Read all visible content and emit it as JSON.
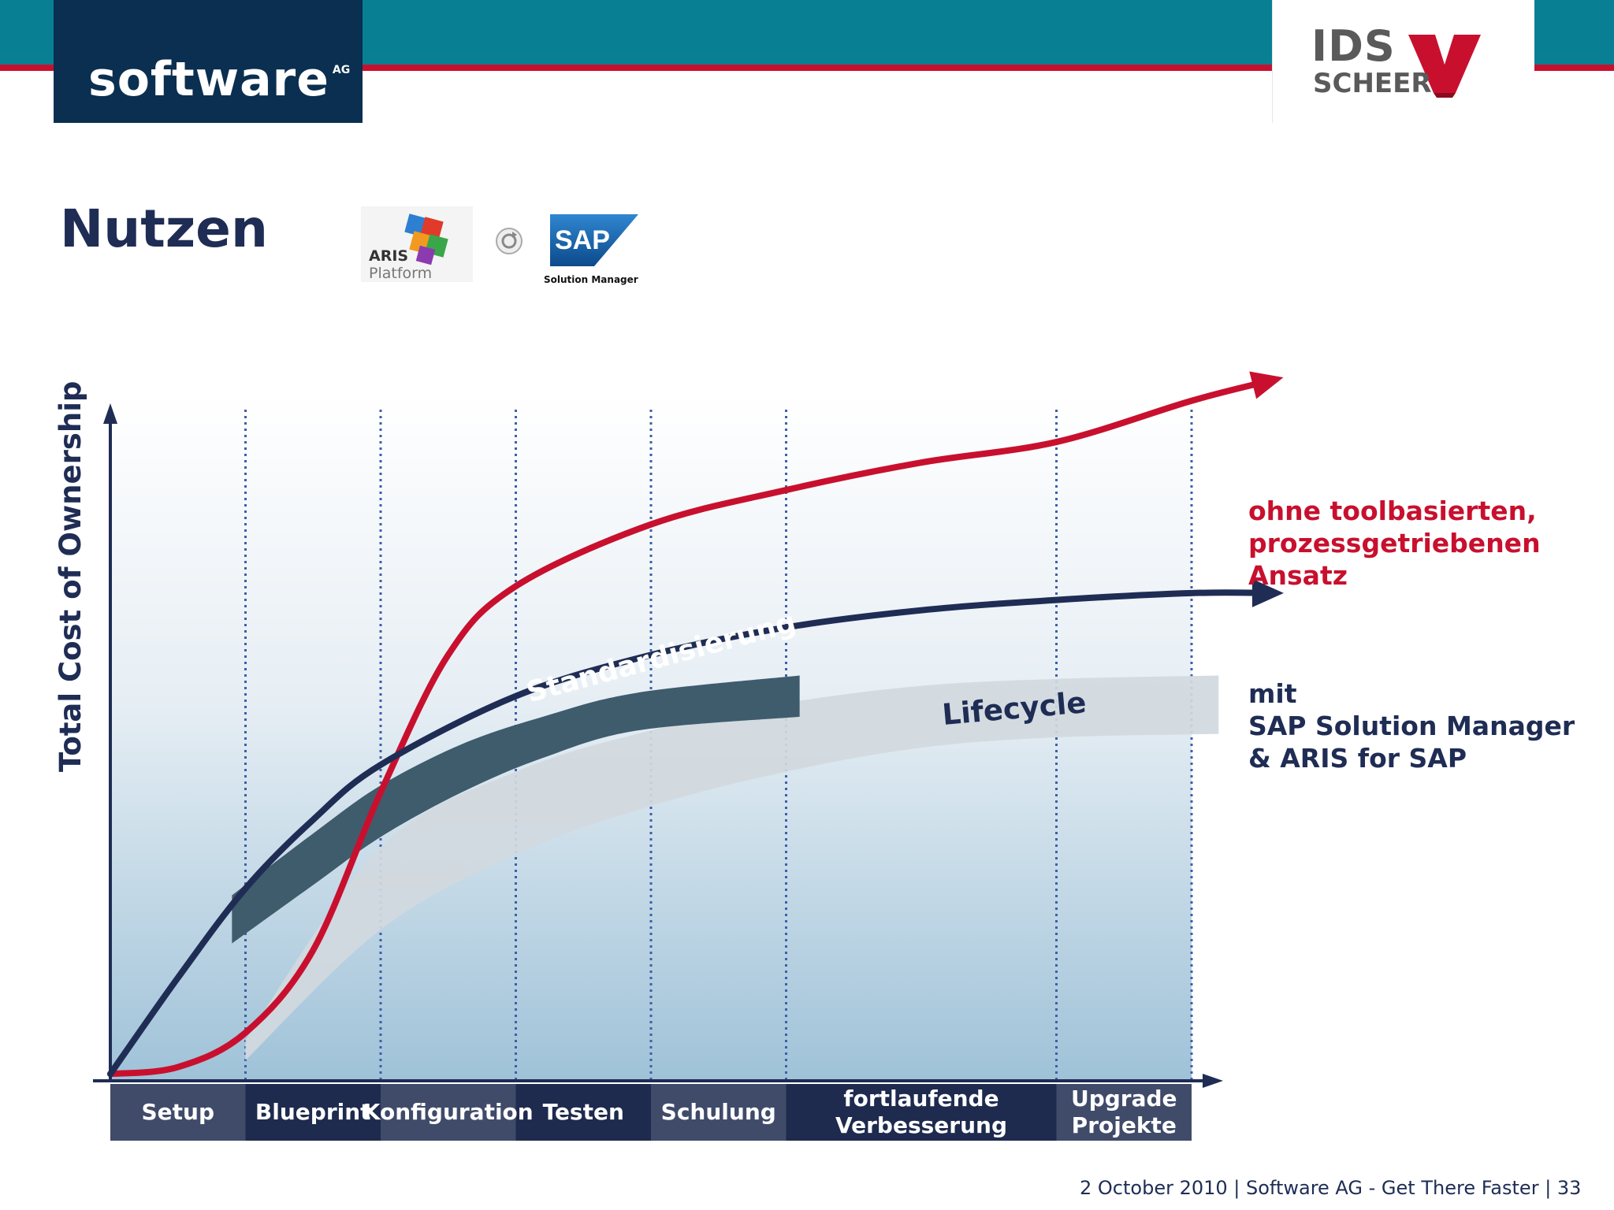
{
  "header": {
    "left_logo": "software",
    "left_logo_sup": "AG",
    "right_logo_top": "IDS",
    "right_logo_bottom": "SCHEER"
  },
  "title": "Nutzen",
  "logos": {
    "aris": "ARIS",
    "aris_sub": "Platform",
    "sap": "SAP",
    "sap_sub": "Solution Manager"
  },
  "chart_data": {
    "type": "line",
    "ylabel": "Total Cost of Ownership",
    "xlabel": "",
    "categories": [
      "Setup",
      "Blueprint",
      "Konfiguration",
      "Testen",
      "Schulung",
      "fortlaufende Verbesserung",
      "Upgrade Projekte"
    ],
    "x_range": [
      0,
      8
    ],
    "ylim": [
      0,
      100
    ],
    "phase_bounds": [
      0,
      1,
      2,
      3,
      4,
      5,
      7,
      8
    ],
    "gridlines": "vertical dotted",
    "series": [
      {
        "name": "ohne toolbasierten, prozessgetriebenen Ansatz",
        "color": "#c8102e",
        "x": [
          0,
          0.5,
          1,
          1.5,
          2,
          2.5,
          3,
          4,
          5,
          6,
          7,
          8,
          8.6
        ],
        "values": [
          1,
          2,
          7,
          19,
          42,
          62,
          72,
          81,
          86,
          90,
          93,
          99,
          102
        ]
      },
      {
        "name": "mit SAP Solution Manager & ARIS for SAP",
        "color": "#1f2d55",
        "x": [
          0,
          0.5,
          1,
          1.5,
          2,
          3,
          4,
          5,
          6,
          7,
          8,
          8.6
        ],
        "values": [
          1,
          15,
          28,
          38,
          46,
          56,
          62,
          66,
          68.5,
          70,
          71,
          71
        ]
      }
    ],
    "bands": [
      {
        "label": "Standardisierung",
        "color": "#3f5c6d"
      },
      {
        "label": "Lifecycle",
        "color": "#d1d9de"
      }
    ],
    "legend": {
      "red": "ohne toolbasierten,\nprozessgetriebenen\nAnsatz",
      "blue": "mit\nSAP Solution Manager\n& ARIS for SAP"
    }
  },
  "footer": "2 October 2010  |  Software AG - Get There Faster  |  33",
  "colors": {
    "teal": "#087f93",
    "red": "#c8102e",
    "navy": "#1f2d55",
    "sag_box": "#0a2f50"
  }
}
